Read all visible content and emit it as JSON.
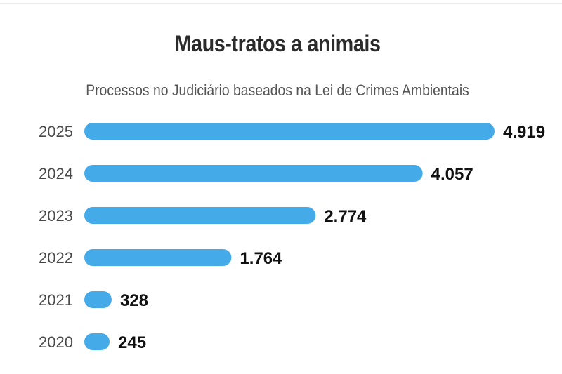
{
  "chart_data": {
    "type": "bar",
    "orientation": "horizontal",
    "title": "Maus-tratos a animais",
    "subtitle": "Processos no Judiciário baseados na Lei de Crimes Ambientais",
    "categories": [
      "2025",
      "2024",
      "2023",
      "2022",
      "2021",
      "2020"
    ],
    "values": [
      4919,
      4057,
      2774,
      1764,
      328,
      245
    ],
    "value_labels": [
      "4.919",
      "4.057",
      "2.774",
      "1.764",
      "328",
      "245"
    ],
    "xlim": [
      0,
      4919
    ],
    "grid": false,
    "legend": "none",
    "bar_color": "#45aae8",
    "label_color": "#111111",
    "category_color": "#4a4a4a"
  }
}
